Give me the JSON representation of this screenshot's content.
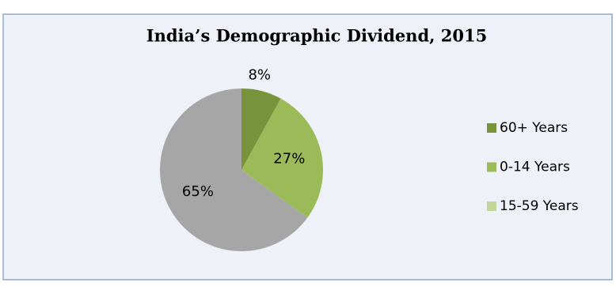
{
  "chart_data": {
    "type": "pie",
    "title": "India’s Demographic Dividend, 2015",
    "categories": [
      "60+ Years",
      "0-14 Years",
      "15-59 Years"
    ],
    "values": [
      8,
      27,
      65
    ],
    "value_labels": [
      "8%",
      "27%",
      "65%"
    ],
    "colors": [
      "#77933c",
      "#9bbb59",
      "#a6a6a6"
    ],
    "legend_colors": [
      "#77933c",
      "#9bbb59",
      "#c4d79b"
    ],
    "legend": "right"
  }
}
